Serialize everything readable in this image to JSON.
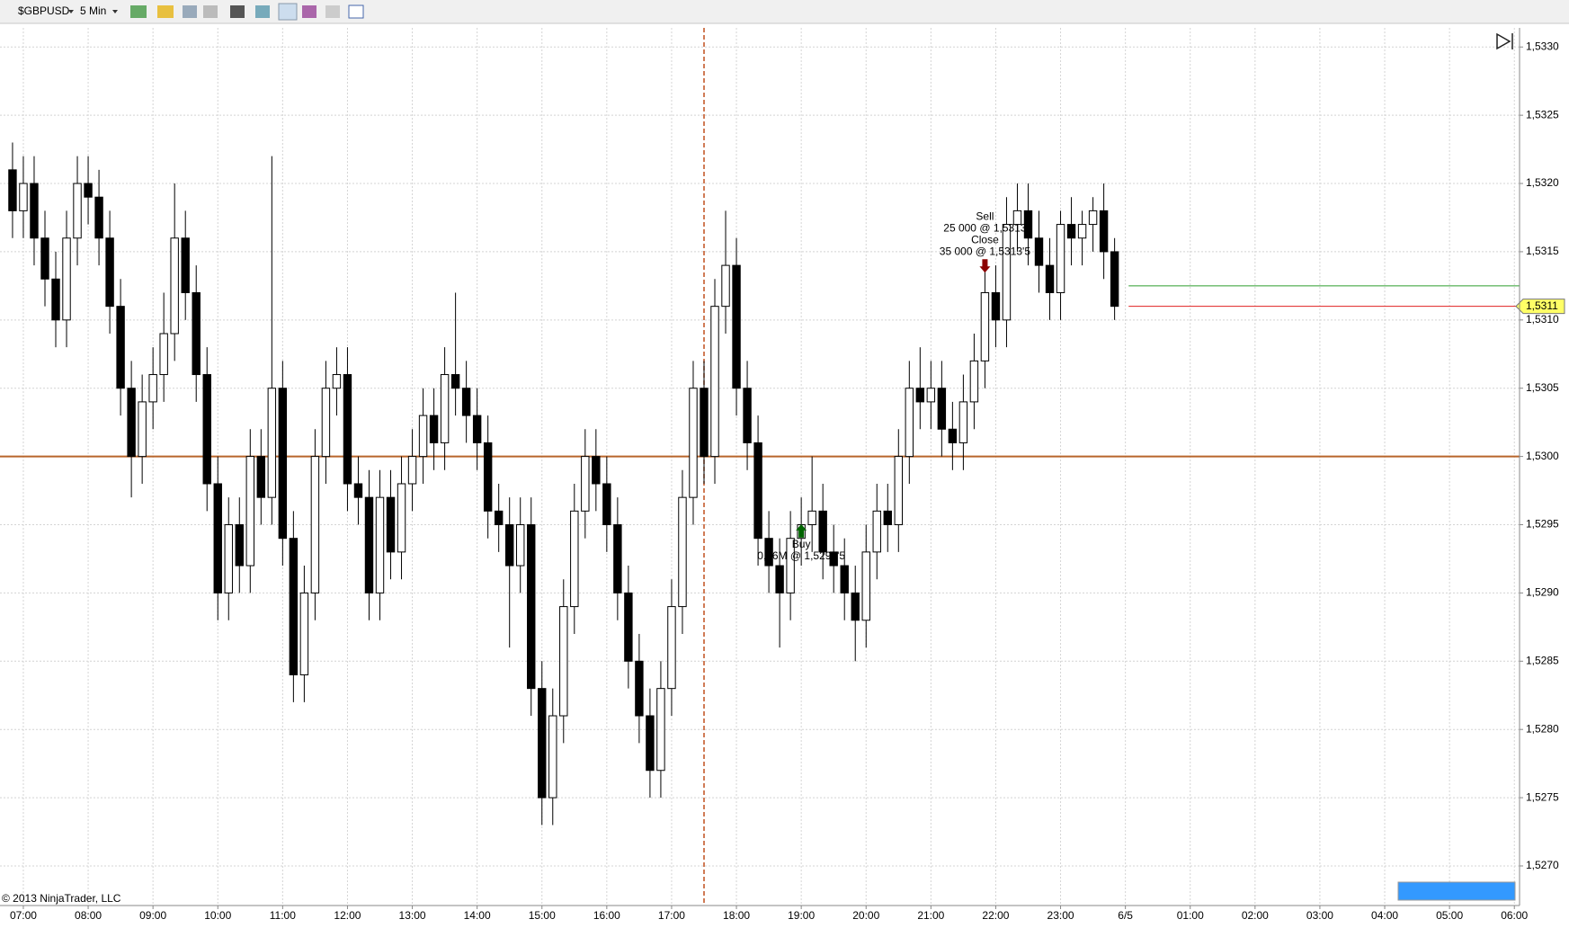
{
  "toolbar": {
    "symbol": "$GBPUSD",
    "interval": "5 Min"
  },
  "footer": {
    "copyright": "© 2013 NinjaTrader, LLC"
  },
  "chart_data": {
    "type": "candlestick",
    "up_color": "#ffffff",
    "down_color": "#000000",
    "outline_color": "#000000",
    "grid": true,
    "x": [
      "06:50",
      "07:00",
      "07:10",
      "07:20",
      "07:30",
      "07:40",
      "07:50",
      "08:00",
      "08:10",
      "08:20",
      "08:30",
      "08:40",
      "08:50",
      "09:00",
      "09:10",
      "09:20",
      "09:30",
      "09:40",
      "09:50",
      "10:00",
      "10:10",
      "10:20",
      "10:30",
      "10:40",
      "10:50",
      "11:00",
      "11:10",
      "11:20",
      "11:30",
      "11:40",
      "11:50",
      "12:00",
      "12:10",
      "12:20",
      "12:30",
      "12:40",
      "12:50",
      "13:00",
      "13:10",
      "13:20",
      "13:30",
      "13:40",
      "13:50",
      "14:00",
      "14:10",
      "14:20",
      "14:30",
      "14:40",
      "14:50",
      "15:00",
      "15:10",
      "15:20",
      "15:30",
      "15:40",
      "15:50",
      "16:00",
      "16:10",
      "16:20",
      "16:30",
      "16:40",
      "16:50",
      "17:00",
      "17:10",
      "17:20",
      "17:30",
      "17:40",
      "17:50",
      "18:00",
      "18:10",
      "18:20",
      "18:30",
      "18:40",
      "18:50",
      "19:00",
      "19:10",
      "19:20",
      "19:30",
      "19:40",
      "19:50",
      "20:00",
      "20:10",
      "20:20",
      "20:30",
      "20:40",
      "20:50",
      "21:00",
      "21:10",
      "21:20",
      "21:30",
      "21:40",
      "21:50",
      "22:00",
      "22:10",
      "22:20",
      "22:30",
      "22:40",
      "22:50",
      "23:00",
      "23:10",
      "23:20",
      "23:30",
      "23:40",
      "23:50"
    ],
    "ohlc": [
      [
        1.5321,
        1.5323,
        1.5316,
        1.5318
      ],
      [
        1.5318,
        1.5322,
        1.5316,
        1.532
      ],
      [
        1.532,
        1.5322,
        1.5314,
        1.5316
      ],
      [
        1.5316,
        1.5318,
        1.5311,
        1.5313
      ],
      [
        1.5313,
        1.5315,
        1.5308,
        1.531
      ],
      [
        1.531,
        1.5318,
        1.5308,
        1.5316
      ],
      [
        1.5316,
        1.5322,
        1.5314,
        1.532
      ],
      [
        1.532,
        1.5322,
        1.5317,
        1.5319
      ],
      [
        1.5319,
        1.5321,
        1.5314,
        1.5316
      ],
      [
        1.5316,
        1.5318,
        1.5309,
        1.5311
      ],
      [
        1.5311,
        1.5313,
        1.5303,
        1.5305
      ],
      [
        1.5305,
        1.5307,
        1.5297,
        1.53
      ],
      [
        1.53,
        1.5306,
        1.5298,
        1.5304
      ],
      [
        1.5304,
        1.5308,
        1.5302,
        1.5306
      ],
      [
        1.5306,
        1.5312,
        1.5304,
        1.5309
      ],
      [
        1.5309,
        1.532,
        1.5307,
        1.5316
      ],
      [
        1.5316,
        1.5318,
        1.531,
        1.5312
      ],
      [
        1.5312,
        1.5314,
        1.5304,
        1.5306
      ],
      [
        1.5306,
        1.5308,
        1.5296,
        1.5298
      ],
      [
        1.5298,
        1.53,
        1.5288,
        1.529
      ],
      [
        1.529,
        1.5297,
        1.5288,
        1.5295
      ],
      [
        1.5295,
        1.5297,
        1.529,
        1.5292
      ],
      [
        1.5292,
        1.5302,
        1.529,
        1.53
      ],
      [
        1.53,
        1.5302,
        1.5295,
        1.5297
      ],
      [
        1.5297,
        1.5322,
        1.5295,
        1.5305
      ],
      [
        1.5305,
        1.5307,
        1.5292,
        1.5294
      ],
      [
        1.5294,
        1.5296,
        1.5282,
        1.5284
      ],
      [
        1.5284,
        1.5292,
        1.5282,
        1.529
      ],
      [
        1.529,
        1.5302,
        1.5288,
        1.53
      ],
      [
        1.53,
        1.5307,
        1.5298,
        1.5305
      ],
      [
        1.5305,
        1.5308,
        1.5303,
        1.5306
      ],
      [
        1.5306,
        1.5308,
        1.5296,
        1.5298
      ],
      [
        1.5298,
        1.53,
        1.5295,
        1.5297
      ],
      [
        1.5297,
        1.5299,
        1.5288,
        1.529
      ],
      [
        1.529,
        1.5299,
        1.5288,
        1.5297
      ],
      [
        1.5297,
        1.5299,
        1.5291,
        1.5293
      ],
      [
        1.5293,
        1.53,
        1.5291,
        1.5298
      ],
      [
        1.5298,
        1.5302,
        1.5296,
        1.53
      ],
      [
        1.53,
        1.5305,
        1.5298,
        1.5303
      ],
      [
        1.5303,
        1.5305,
        1.5299,
        1.5301
      ],
      [
        1.5301,
        1.5308,
        1.5299,
        1.5306
      ],
      [
        1.5306,
        1.5312,
        1.5303,
        1.5305
      ],
      [
        1.5305,
        1.5307,
        1.5301,
        1.5303
      ],
      [
        1.5303,
        1.5305,
        1.5299,
        1.5301
      ],
      [
        1.5301,
        1.5303,
        1.5294,
        1.5296
      ],
      [
        1.5296,
        1.5298,
        1.5293,
        1.5295
      ],
      [
        1.5295,
        1.5297,
        1.5286,
        1.5292
      ],
      [
        1.5292,
        1.5297,
        1.529,
        1.5295
      ],
      [
        1.5295,
        1.5297,
        1.5281,
        1.5283
      ],
      [
        1.5283,
        1.5285,
        1.5273,
        1.5275
      ],
      [
        1.5275,
        1.5283,
        1.5273,
        1.5281
      ],
      [
        1.5281,
        1.5291,
        1.5279,
        1.5289
      ],
      [
        1.5289,
        1.5298,
        1.5287,
        1.5296
      ],
      [
        1.5296,
        1.5302,
        1.5294,
        1.53
      ],
      [
        1.53,
        1.5302,
        1.5296,
        1.5298
      ],
      [
        1.5298,
        1.53,
        1.5293,
        1.5295
      ],
      [
        1.5295,
        1.5297,
        1.5288,
        1.529
      ],
      [
        1.529,
        1.5292,
        1.5283,
        1.5285
      ],
      [
        1.5285,
        1.5287,
        1.5279,
        1.5281
      ],
      [
        1.5281,
        1.5283,
        1.5275,
        1.5277
      ],
      [
        1.5277,
        1.5285,
        1.5275,
        1.5283
      ],
      [
        1.5283,
        1.5291,
        1.5281,
        1.5289
      ],
      [
        1.5289,
        1.5299,
        1.5287,
        1.5297
      ],
      [
        1.5297,
        1.5307,
        1.5295,
        1.5305
      ],
      [
        1.5305,
        1.5307,
        1.5298,
        1.53
      ],
      [
        1.53,
        1.5313,
        1.5298,
        1.5311
      ],
      [
        1.5311,
        1.5318,
        1.5309,
        1.5314
      ],
      [
        1.5314,
        1.5316,
        1.5303,
        1.5305
      ],
      [
        1.5305,
        1.5307,
        1.5299,
        1.5301
      ],
      [
        1.5301,
        1.5303,
        1.5292,
        1.5294
      ],
      [
        1.5294,
        1.5296,
        1.529,
        1.5292
      ],
      [
        1.5292,
        1.5294,
        1.5286,
        1.529
      ],
      [
        1.529,
        1.5296,
        1.5288,
        1.5294
      ],
      [
        1.5294,
        1.5297,
        1.5292,
        1.5295
      ],
      [
        1.5295,
        1.53,
        1.5293,
        1.5296
      ],
      [
        1.5296,
        1.5298,
        1.5291,
        1.5293
      ],
      [
        1.5293,
        1.5295,
        1.529,
        1.5292
      ],
      [
        1.5292,
        1.5294,
        1.5288,
        1.529
      ],
      [
        1.529,
        1.5292,
        1.5285,
        1.5288
      ],
      [
        1.5288,
        1.5295,
        1.5286,
        1.5293
      ],
      [
        1.5293,
        1.5298,
        1.5291,
        1.5296
      ],
      [
        1.5296,
        1.5298,
        1.5293,
        1.5295
      ],
      [
        1.5295,
        1.5302,
        1.5293,
        1.53
      ],
      [
        1.53,
        1.5307,
        1.5298,
        1.5305
      ],
      [
        1.5305,
        1.5308,
        1.5302,
        1.5304
      ],
      [
        1.5304,
        1.5307,
        1.5302,
        1.5305
      ],
      [
        1.5305,
        1.5307,
        1.53,
        1.5302
      ],
      [
        1.5302,
        1.5304,
        1.5299,
        1.5301
      ],
      [
        1.5301,
        1.5306,
        1.5299,
        1.5304
      ],
      [
        1.5304,
        1.5309,
        1.5302,
        1.5307
      ],
      [
        1.5307,
        1.5314,
        1.5305,
        1.5312
      ],
      [
        1.5312,
        1.5314,
        1.5308,
        1.531
      ],
      [
        1.531,
        1.5319,
        1.5308,
        1.5317
      ],
      [
        1.5317,
        1.532,
        1.5315,
        1.5318
      ],
      [
        1.5318,
        1.532,
        1.5314,
        1.5316
      ],
      [
        1.5316,
        1.5318,
        1.5312,
        1.5314
      ],
      [
        1.5314,
        1.5316,
        1.531,
        1.5312
      ],
      [
        1.5312,
        1.5318,
        1.531,
        1.5317
      ],
      [
        1.5317,
        1.5319,
        1.5314,
        1.5316
      ],
      [
        1.5316,
        1.5318,
        1.5314,
        1.5317
      ],
      [
        1.5317,
        1.5319,
        1.5315,
        1.5318
      ],
      [
        1.5318,
        1.532,
        1.5313,
        1.5315
      ],
      [
        1.5315,
        1.5316,
        1.531,
        1.5311
      ]
    ],
    "xlim": [
      6.64,
      30.08
    ],
    "xticks": [
      {
        "value": 7,
        "label": "07:00"
      },
      {
        "value": 8,
        "label": "08:00"
      },
      {
        "value": 9,
        "label": "09:00"
      },
      {
        "value": 10,
        "label": "10:00"
      },
      {
        "value": 11,
        "label": "11:00"
      },
      {
        "value": 12,
        "label": "12:00"
      },
      {
        "value": 13,
        "label": "13:00"
      },
      {
        "value": 14,
        "label": "14:00"
      },
      {
        "value": 15,
        "label": "15:00"
      },
      {
        "value": 16,
        "label": "16:00"
      },
      {
        "value": 17,
        "label": "17:00"
      },
      {
        "value": 18,
        "label": "18:00"
      },
      {
        "value": 19,
        "label": "19:00"
      },
      {
        "value": 20,
        "label": "20:00"
      },
      {
        "value": 21,
        "label": "21:00"
      },
      {
        "value": 22,
        "label": "22:00"
      },
      {
        "value": 23,
        "label": "23:00"
      },
      {
        "value": 24,
        "label": "6/5"
      },
      {
        "value": 25,
        "label": "01:00"
      },
      {
        "value": 26,
        "label": "02:00"
      },
      {
        "value": 27,
        "label": "03:00"
      },
      {
        "value": 28,
        "label": "04:00"
      },
      {
        "value": 29,
        "label": "05:00"
      },
      {
        "value": 30,
        "label": "06:00"
      }
    ],
    "ylim": [
      1.52671,
      1.53314
    ],
    "yticks": [
      {
        "value": 1.527,
        "label": "1,5270"
      },
      {
        "value": 1.5275,
        "label": "1,5275"
      },
      {
        "value": 1.528,
        "label": "1,5280"
      },
      {
        "value": 1.5285,
        "label": "1,5285"
      },
      {
        "value": 1.529,
        "label": "1,5290"
      },
      {
        "value": 1.5295,
        "label": "1,5295"
      },
      {
        "value": 1.53,
        "label": "1,5300"
      },
      {
        "value": 1.5305,
        "label": "1,5305"
      },
      {
        "value": 1.531,
        "label": "1,5310"
      },
      {
        "value": 1.5315,
        "label": "1,5315"
      },
      {
        "value": 1.532,
        "label": "1,5320"
      },
      {
        "value": 1.5325,
        "label": "1,5325"
      },
      {
        "value": 1.533,
        "label": "1,5330"
      }
    ],
    "hlines": [
      {
        "value": 1.53,
        "color": "#b8652a"
      },
      {
        "value": 1.53125,
        "color": "#2e9e2e"
      },
      {
        "value": 1.5311,
        "color": "#e02020"
      }
    ],
    "price_marker": {
      "value": 1.5311,
      "label": "1,5311",
      "color": "#ffff66"
    },
    "vline": {
      "x": "17:30",
      "color": "#c0501e"
    },
    "trades": [
      {
        "x": "21:50",
        "price": 1.5313,
        "direction": "sell",
        "color": "#8b0000",
        "lines": [
          "Sell",
          "25 000 @ 1,5313",
          "Close",
          "35 000 @ 1,5313'5"
        ]
      },
      {
        "x": "19:00",
        "price": 1.52955,
        "direction": "buy",
        "color": "#006400",
        "lines": [
          "Buy",
          "0,06M @ 1,5295'5"
        ]
      }
    ]
  }
}
